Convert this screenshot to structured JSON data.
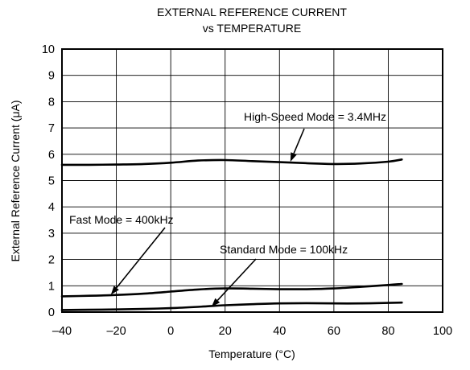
{
  "chart_data": {
    "type": "line",
    "title": "EXTERNAL REFERENCE CURRENT",
    "subtitle": "vs TEMPERATURE",
    "xlabel": "Temperature (°C)",
    "ylabel": "External Reference Current (μA)",
    "xlim": [
      -40,
      100
    ],
    "ylim": [
      0,
      10
    ],
    "xticks": [
      -40,
      -20,
      0,
      20,
      40,
      60,
      80,
      100
    ],
    "xtick_labels": [
      "–40",
      "–20",
      "0",
      "20",
      "40",
      "60",
      "80",
      "100"
    ],
    "yticks": [
      0,
      1,
      2,
      3,
      4,
      5,
      6,
      7,
      8,
      9,
      10
    ],
    "grid": true,
    "series": [
      {
        "name": "High-Speed Mode = 3.4MHz",
        "x": [
          -40,
          -30,
          -20,
          -10,
          0,
          10,
          20,
          30,
          40,
          50,
          60,
          70,
          80,
          85
        ],
        "y": [
          5.6,
          5.6,
          5.61,
          5.63,
          5.68,
          5.76,
          5.78,
          5.74,
          5.7,
          5.66,
          5.63,
          5.65,
          5.72,
          5.8
        ]
      },
      {
        "name": "Fast Mode = 400kHz",
        "x": [
          -40,
          -30,
          -20,
          -10,
          0,
          10,
          20,
          30,
          40,
          50,
          60,
          70,
          80,
          85
        ],
        "y": [
          0.6,
          0.62,
          0.65,
          0.7,
          0.78,
          0.86,
          0.9,
          0.89,
          0.87,
          0.87,
          0.9,
          0.96,
          1.03,
          1.07
        ]
      },
      {
        "name": "Standard Mode = 100kHz",
        "x": [
          -40,
          -30,
          -20,
          -10,
          0,
          10,
          20,
          30,
          40,
          50,
          60,
          70,
          80,
          85
        ],
        "y": [
          0.08,
          0.09,
          0.1,
          0.12,
          0.15,
          0.2,
          0.26,
          0.3,
          0.33,
          0.34,
          0.33,
          0.33,
          0.35,
          0.36
        ]
      }
    ],
    "annotations": [
      {
        "text": "High-Speed Mode = 3.4MHz",
        "series": "High-Speed Mode = 3.4MHz",
        "arrow_to": [
          44,
          5.72
        ]
      },
      {
        "text": "Fast Mode = 400kHz",
        "series": "Fast Mode = 400kHz",
        "arrow_to": [
          -22,
          0.66
        ]
      },
      {
        "text": "Standard Mode = 100kHz",
        "series": "Standard Mode = 100kHz",
        "arrow_to": [
          15,
          0.2
        ]
      }
    ]
  }
}
